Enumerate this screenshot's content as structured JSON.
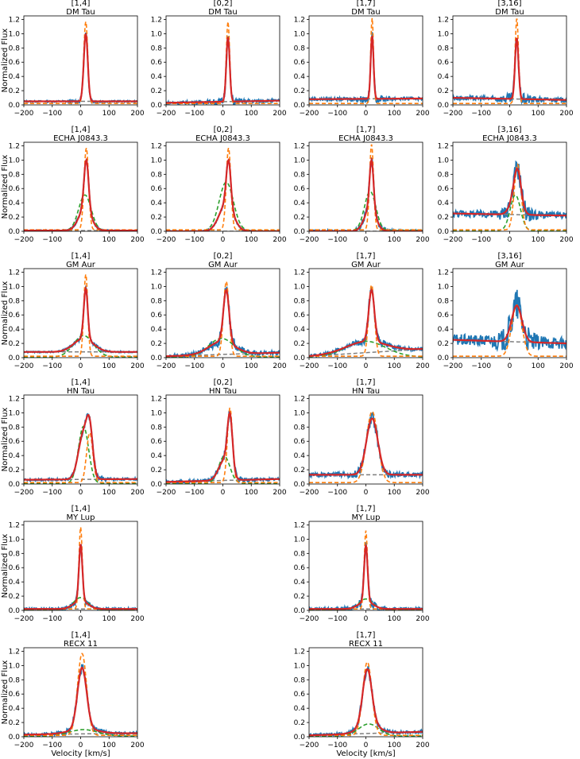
{
  "figure": {
    "ylabel": "Normalized Flux",
    "xlabel": "Velocity [km/s]"
  },
  "colors": {
    "observed": "#1f77b4",
    "fit": "#d62728",
    "narrow": "#ff7f0e",
    "broad": "#2ca02c",
    "continuum": "#7f7f7f"
  },
  "chart_data": {
    "type": "line",
    "description_units": "x = velocity (km/s), y = normalized flux",
    "xlim": [
      -200,
      200
    ],
    "ylim": [
      0,
      1.25
    ],
    "xticks": [
      -200,
      -100,
      0,
      100,
      200
    ],
    "yticks": [
      0.0,
      0.2,
      0.4,
      0.6,
      0.8,
      1.0,
      1.2
    ],
    "panels": [
      {
        "row": 0,
        "col": 0,
        "band": "[1,4]",
        "star": "DM Tau",
        "cont": [
          0.05,
          0.05
        ],
        "narrow": {
          "a": 1.15,
          "c": 18,
          "s": 7
        },
        "broad": null,
        "fitpeak": 1.0,
        "noise": 0.01
      },
      {
        "row": 0,
        "col": 1,
        "band": "[0,2]",
        "star": "DM Tau",
        "cont": [
          0.03,
          0.06
        ],
        "narrow": {
          "a": 1.15,
          "c": 18,
          "s": 6
        },
        "broad": null,
        "fitpeak": 0.95,
        "noise": 0.02
      },
      {
        "row": 0,
        "col": 2,
        "band": "[1,7]",
        "star": "DM Tau",
        "cont": [
          0.08,
          0.09
        ],
        "narrow": {
          "a": 1.2,
          "c": 22,
          "s": 5
        },
        "broad": null,
        "fitpeak": 0.97,
        "noise": 0.02
      },
      {
        "row": 0,
        "col": 3,
        "band": "[3,16]",
        "star": "DM Tau",
        "cont": [
          0.1,
          0.07
        ],
        "narrow": {
          "a": 1.2,
          "c": 25,
          "s": 6
        },
        "broad": null,
        "fitpeak": 0.93,
        "noise": 0.03
      },
      {
        "row": 1,
        "col": 0,
        "band": "[1,4]",
        "star": "ECHA J0843.3",
        "cont": [
          0.01,
          0.01
        ],
        "narrow": {
          "a": 1.15,
          "c": 20,
          "s": 8
        },
        "broad": {
          "a": 0.5,
          "c": 15,
          "s": 22
        },
        "fitpeak": 1.0,
        "noise": 0.008
      },
      {
        "row": 1,
        "col": 1,
        "band": "[0,2]",
        "star": "ECHA J0843.3",
        "cont": [
          0.0,
          0.0
        ],
        "narrow": {
          "a": 1.15,
          "c": 20,
          "s": 8
        },
        "broad": {
          "a": 0.68,
          "c": 12,
          "s": 25
        },
        "fitpeak": 1.0,
        "noise": 0.008
      },
      {
        "row": 1,
        "col": 2,
        "band": "[1,7]",
        "star": "ECHA J0843.3",
        "cont": [
          0.0,
          0.0
        ],
        "narrow": {
          "a": 1.2,
          "c": 20,
          "s": 7
        },
        "broad": {
          "a": 0.55,
          "c": 15,
          "s": 20
        },
        "fitpeak": 1.0,
        "noise": 0.02
      },
      {
        "row": 1,
        "col": 3,
        "band": "[3,16]",
        "star": "ECHA J0843.3",
        "cont": [
          0.25,
          0.22
        ],
        "narrow": {
          "a": 0.92,
          "c": 28,
          "s": 12
        },
        "broad": {
          "a": 0.5,
          "c": 20,
          "s": 18
        },
        "fitpeak": 0.88,
        "noise": 0.05
      },
      {
        "row": 2,
        "col": 0,
        "band": "[1,4]",
        "star": "GM Aur",
        "cont": [
          0.08,
          0.08
        ],
        "narrow": {
          "a": 1.15,
          "c": 18,
          "s": 7
        },
        "broad": {
          "a": 0.3,
          "c": 10,
          "s": 35
        },
        "fitpeak": 0.97,
        "noise": 0.01
      },
      {
        "row": 2,
        "col": 1,
        "band": "[0,2]",
        "star": "GM Aur",
        "cont": [
          0.02,
          0.07
        ],
        "narrow": {
          "a": 1.05,
          "c": 12,
          "s": 10
        },
        "broad": {
          "a": 0.26,
          "c": -5,
          "s": 45
        },
        "fitpeak": 0.95,
        "noise": 0.03
      },
      {
        "row": 2,
        "col": 2,
        "band": "[1,7]",
        "star": "GM Aur",
        "cont": [
          0.02,
          0.12
        ],
        "narrow": {
          "a": 1.0,
          "c": 20,
          "s": 10
        },
        "broad": {
          "a": 0.22,
          "c": 0,
          "s": 70
        },
        "fitpeak": 0.95,
        "noise": 0.025
      },
      {
        "row": 2,
        "col": 3,
        "band": "[3,16]",
        "star": "GM Aur",
        "cont": [
          0.25,
          0.2
        ],
        "narrow": {
          "a": 0.72,
          "c": 25,
          "s": 18
        },
        "broad": null,
        "fitpeak": 0.73,
        "noise": 0.08
      },
      {
        "row": 3,
        "col": 0,
        "band": "[1,4]",
        "star": "HN Tau",
        "cont": [
          0.06,
          0.07
        ],
        "narrow": {
          "a": 0.7,
          "c": 32,
          "s": 11
        },
        "broad": {
          "a": 0.8,
          "c": 10,
          "s": 18
        },
        "fitpeak": 0.97,
        "noise": 0.015
      },
      {
        "row": 3,
        "col": 1,
        "band": "[0,2]",
        "star": "HN Tau",
        "cont": [
          0.03,
          0.07
        ],
        "narrow": {
          "a": 1.05,
          "c": 25,
          "s": 9
        },
        "broad": {
          "a": 0.38,
          "c": 5,
          "s": 20
        },
        "fitpeak": 1.0,
        "noise": 0.02
      },
      {
        "row": 3,
        "col": 2,
        "band": "[1,7]",
        "star": "HN Tau",
        "cont": [
          0.13,
          0.13
        ],
        "narrow": {
          "a": 1.0,
          "c": 22,
          "s": 20
        },
        "broad": null,
        "fitpeak": 0.92,
        "noise": 0.03
      },
      {
        "row": 4,
        "col": 0,
        "band": "[1,4]",
        "star": "MY Lup",
        "cont": [
          0.02,
          0.02
        ],
        "narrow": {
          "a": 1.15,
          "c": 0,
          "s": 6
        },
        "broad": {
          "a": 0.17,
          "c": 0,
          "s": 25
        },
        "fitpeak": 0.93,
        "noise": 0.015
      },
      {
        "row": 4,
        "col": 2,
        "band": "[1,7]",
        "star": "MY Lup",
        "cont": [
          0.02,
          0.02
        ],
        "narrow": {
          "a": 1.1,
          "c": 0,
          "s": 6
        },
        "broad": {
          "a": 0.15,
          "c": 0,
          "s": 25
        },
        "fitpeak": 0.92,
        "noise": 0.02
      },
      {
        "row": 5,
        "col": 0,
        "band": "[1,4]",
        "star": "RECX 11",
        "cont": [
          0.03,
          0.05
        ],
        "narrow": {
          "a": 1.15,
          "c": 5,
          "s": 16
        },
        "broad": {
          "a": 0.09,
          "c": 10,
          "s": 50
        },
        "fitpeak": 0.97,
        "noise": 0.02
      },
      {
        "row": 5,
        "col": 2,
        "band": "[1,7]",
        "star": "RECX 11",
        "cont": [
          0.02,
          0.07
        ],
        "narrow": {
          "a": 1.03,
          "c": 5,
          "s": 16
        },
        "broad": {
          "a": 0.17,
          "c": 10,
          "s": 35
        },
        "fitpeak": 0.95,
        "noise": 0.02
      }
    ]
  }
}
